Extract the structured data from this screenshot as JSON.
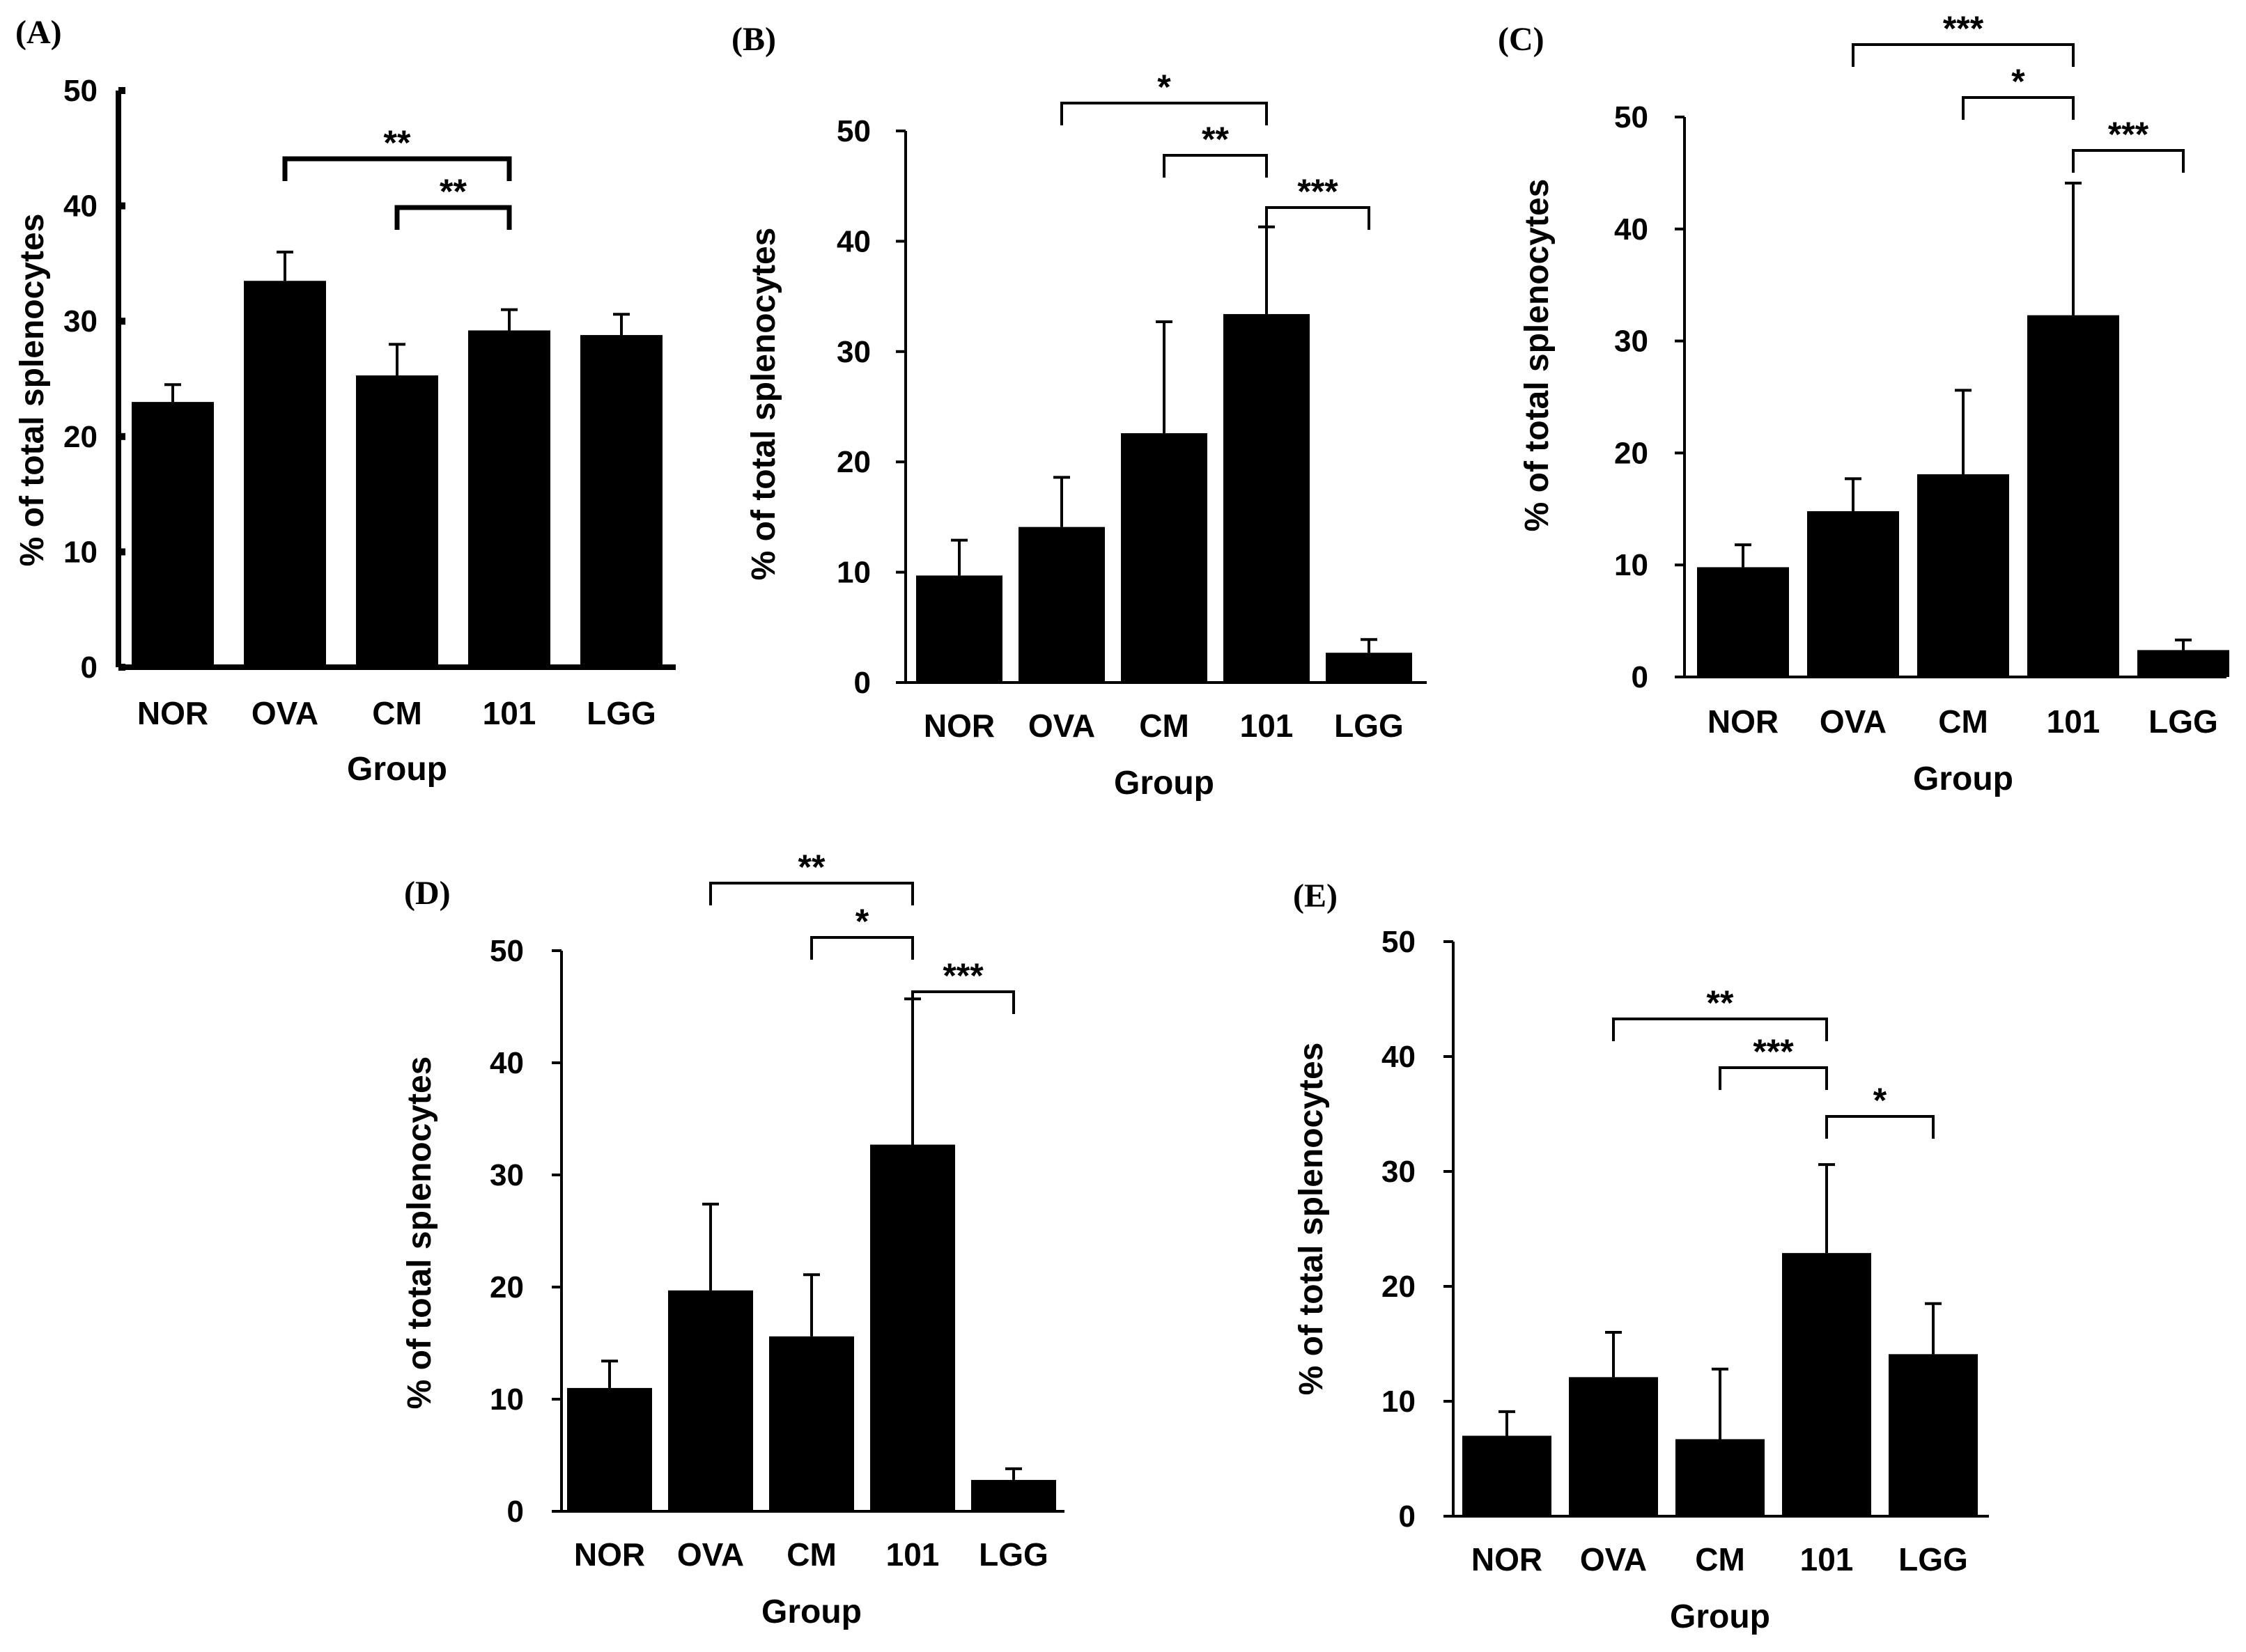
{
  "chart_data": [
    {
      "type": "bar",
      "panel": "(A)",
      "categories": [
        "NOR",
        "OVA",
        "CM",
        "101",
        "LGG"
      ],
      "values": [
        23.0,
        33.5,
        25.3,
        29.2,
        28.8
      ],
      "errors": [
        1.5,
        2.5,
        2.7,
        1.8,
        1.8
      ],
      "xlabel": "Group",
      "ylabel": "% of total splenocytes",
      "ylim": [
        0,
        50
      ],
      "yticks": [
        "0",
        "10",
        "20",
        "30",
        "40",
        "50"
      ],
      "significance": [
        {
          "from": "OVA",
          "to": "101",
          "label": "**"
        },
        {
          "from": "CM",
          "to": "101",
          "label": "**"
        }
      ]
    },
    {
      "type": "bar",
      "panel": "(B)",
      "categories": [
        "NOR",
        "OVA",
        "CM",
        "101",
        "LGG"
      ],
      "values": [
        9.7,
        14.1,
        22.6,
        33.4,
        2.7
      ],
      "errors": [
        3.2,
        4.5,
        10.1,
        7.9,
        1.2
      ],
      "xlabel": "Group",
      "ylabel": "% of total splenocytes",
      "ylim": [
        0,
        50
      ],
      "yticks": [
        "0",
        "10",
        "20",
        "30",
        "40",
        "50"
      ],
      "significance": [
        {
          "from": "OVA",
          "to": "101",
          "label": "*"
        },
        {
          "from": "CM",
          "to": "101",
          "label": "**"
        },
        {
          "from": "101",
          "to": "LGG",
          "label": "***"
        }
      ]
    },
    {
      "type": "bar",
      "panel": "(C)",
      "categories": [
        "NOR",
        "OVA",
        "CM",
        "101",
        "LGG"
      ],
      "values": [
        9.8,
        14.8,
        18.1,
        32.3,
        2.4
      ],
      "errors": [
        2.0,
        2.9,
        7.5,
        11.8,
        0.9
      ],
      "xlabel": "Group",
      "ylabel": "% of total splenocytes",
      "ylim": [
        0,
        50
      ],
      "yticks": [
        "0",
        "10",
        "20",
        "30",
        "40",
        "50"
      ],
      "significance": [
        {
          "from": "OVA",
          "to": "101",
          "label": "***"
        },
        {
          "from": "CM",
          "to": "101",
          "label": "*"
        },
        {
          "from": "101",
          "to": "LGG",
          "label": "***"
        }
      ]
    },
    {
      "type": "bar",
      "panel": "(D)",
      "categories": [
        "NOR",
        "OVA",
        "CM",
        "101",
        "LGG"
      ],
      "values": [
        11.0,
        19.7,
        15.6,
        32.7,
        2.8
      ],
      "errors": [
        2.4,
        7.7,
        5.5,
        13.0,
        1.0
      ],
      "xlabel": "Group",
      "ylabel": "% of total splenocytes",
      "ylim": [
        0,
        50
      ],
      "yticks": [
        "0",
        "10",
        "20",
        "30",
        "40",
        "50"
      ],
      "significance": [
        {
          "from": "OVA",
          "to": "101",
          "label": "**"
        },
        {
          "from": "CM",
          "to": "101",
          "label": "*"
        },
        {
          "from": "101",
          "to": "LGG",
          "label": "***"
        }
      ]
    },
    {
      "type": "bar",
      "panel": "(E)",
      "categories": [
        "NOR",
        "OVA",
        "CM",
        "101",
        "LGG"
      ],
      "values": [
        7.0,
        12.1,
        6.7,
        22.9,
        14.1
      ],
      "errors": [
        2.1,
        3.9,
        6.1,
        7.7,
        4.4
      ],
      "xlabel": "Group",
      "ylabel": "% of total splenocytes",
      "ylim": [
        0,
        50
      ],
      "yticks": [
        "0",
        "10",
        "20",
        "30",
        "40",
        "50"
      ],
      "significance": [
        {
          "from": "OVA",
          "to": "101",
          "label": "**"
        },
        {
          "from": "CM",
          "to": "101",
          "label": "***"
        },
        {
          "from": "101",
          "to": "LGG",
          "label": "*"
        }
      ]
    }
  ]
}
